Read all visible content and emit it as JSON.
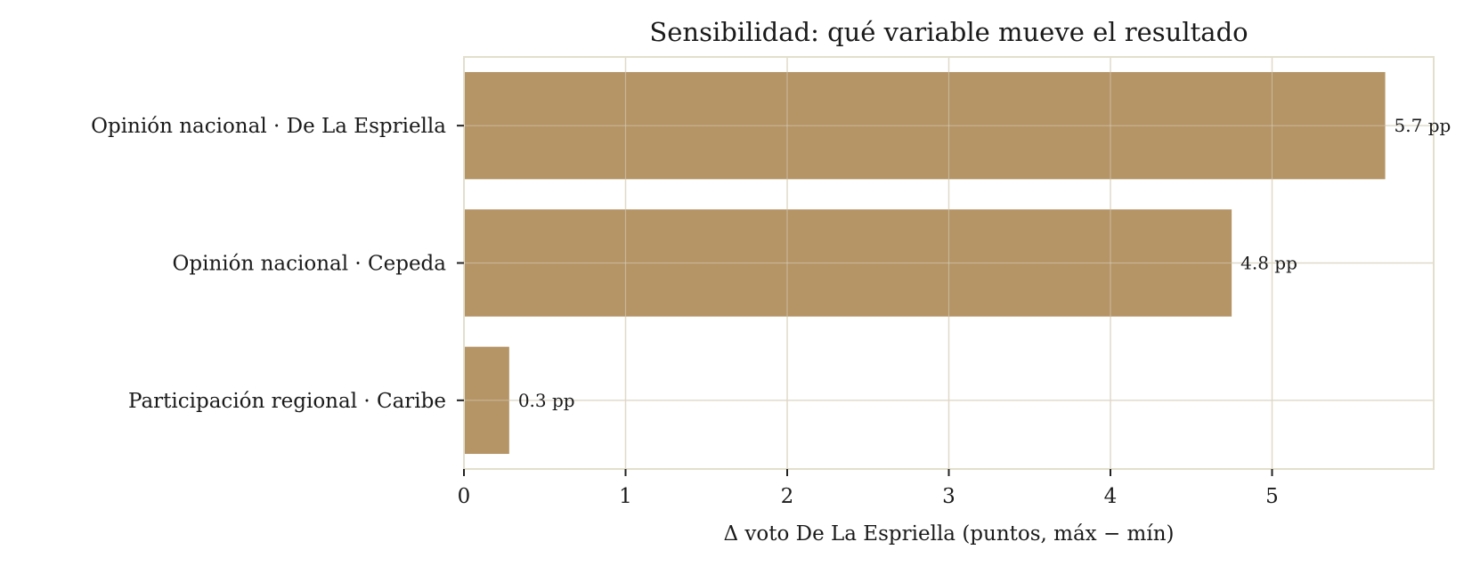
{
  "chart_data": {
    "type": "bar",
    "orientation": "horizontal",
    "title": "Sensibilidad: qué variable mueve el resultado",
    "xlabel": "Δ voto De La Espriella (puntos, máx − mín)",
    "ylabel": "",
    "categories": [
      "Opinión nacional · De La Espriella",
      "Opinión nacional · Cepeda",
      "Participación regional · Caribe"
    ],
    "values": [
      5.7,
      4.75,
      0.28
    ],
    "data_labels": [
      "5.7 pp",
      "4.8 pp",
      "0.3 pp"
    ],
    "xlim": [
      0,
      6
    ],
    "xticks": [
      0,
      1,
      2,
      3,
      4,
      5
    ],
    "xtick_labels": [
      "0",
      "1",
      "2",
      "3",
      "4",
      "5"
    ],
    "grid": true,
    "bar_color": "#b59466",
    "grid_color": "#e7e3d6",
    "frame_color": "#e3dfcd"
  }
}
